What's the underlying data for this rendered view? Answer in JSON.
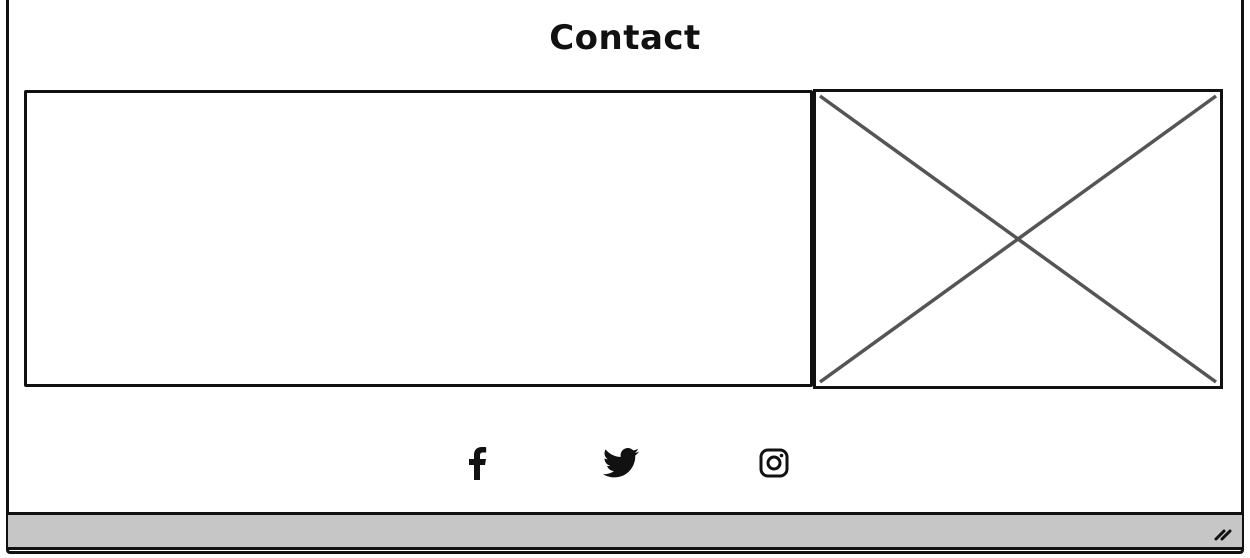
{
  "page": {
    "title": "Contact"
  },
  "contact_form": {},
  "image_placeholder": {
    "icon": "image-placeholder-x"
  },
  "social": [
    {
      "name": "facebook",
      "icon": "facebook-icon"
    },
    {
      "name": "twitter",
      "icon": "twitter-icon"
    },
    {
      "name": "instagram",
      "icon": "instagram-icon"
    }
  ],
  "colors": {
    "stroke": "#111111",
    "placeholder_cross": "#555555",
    "statusbar": "#c6c6c6",
    "background": "#ffffff"
  }
}
